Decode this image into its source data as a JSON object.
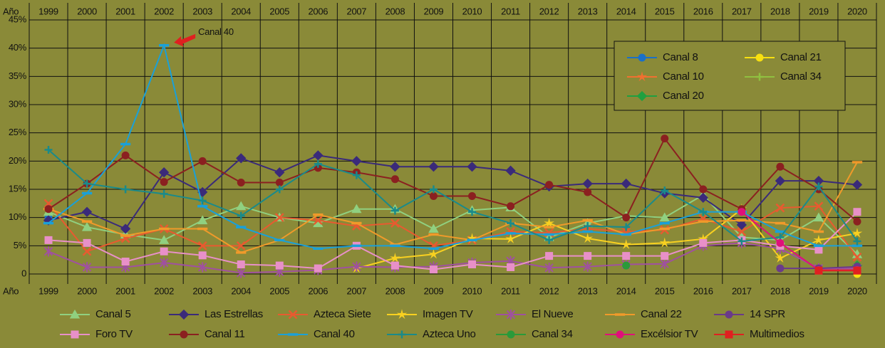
{
  "chart_data": {
    "type": "line",
    "x_label": "Año",
    "annotation": "Canal 40",
    "categories": [
      "1999",
      "2000",
      "2001",
      "2002",
      "2003",
      "2004",
      "2005",
      "2006",
      "2007",
      "2008",
      "2009",
      "2010",
      "2011",
      "2012",
      "2013",
      "2014",
      "2015",
      "2016",
      "2017",
      "2018",
      "2019",
      "2020"
    ],
    "ylim": [
      0,
      45
    ],
    "yticks": [
      0,
      {
        "value": 5,
        "label": "5%"
      },
      {
        "value": 10,
        "label": "10%"
      },
      {
        "value": 15,
        "label": "15%"
      },
      {
        "value": 20,
        "label": "20%"
      },
      {
        "value": 25,
        "label": "25%"
      },
      {
        "value": 30,
        "label": "30%"
      },
      {
        "value": 35,
        "label": "35%"
      },
      {
        "value": 40,
        "label": "40%"
      },
      {
        "value": 45,
        "label": "45%"
      }
    ],
    "grid": true,
    "series": [
      {
        "name": "Canal 8",
        "color": "#1a70c8",
        "marker": "circle",
        "legend": "inset",
        "values": [
          10,
          null,
          null,
          null,
          null,
          null,
          null,
          null,
          null,
          null,
          null,
          null,
          null,
          null,
          null,
          null,
          null,
          null,
          null,
          null,
          null,
          null
        ]
      },
      {
        "name": "Canal 21",
        "color": "#f8e010",
        "marker": "circle",
        "legend": "inset",
        "values": [
          null,
          null,
          null,
          null,
          null,
          null,
          null,
          null,
          null,
          null,
          null,
          null,
          null,
          null,
          null,
          null,
          null,
          null,
          null,
          null,
          null,
          0
        ]
      },
      {
        "name": "Canal 10",
        "color": "#f07030",
        "marker": "star",
        "legend": "inset",
        "values": [
          null,
          null,
          null,
          null,
          null,
          null,
          null,
          null,
          null,
          null,
          null,
          null,
          null,
          null,
          null,
          null,
          null,
          null,
          null,
          null,
          null,
          1
        ]
      },
      {
        "name": "Canal 34",
        "color": "#90c040",
        "marker": "plus",
        "legend": "inset",
        "values": [
          null,
          null,
          null,
          null,
          null,
          null,
          null,
          null,
          null,
          null,
          null,
          null,
          null,
          null,
          null,
          null,
          null,
          null,
          null,
          null,
          null,
          1.2
        ]
      },
      {
        "name": "Canal 20",
        "color": "#20a040",
        "marker": "diamond",
        "legend": "inset",
        "values": [
          null,
          null,
          null,
          null,
          null,
          null,
          null,
          null,
          null,
          null,
          null,
          null,
          null,
          null,
          null,
          null,
          null,
          null,
          null,
          null,
          null,
          1.5
        ]
      },
      {
        "name": "Canal 5",
        "color": "#90d080",
        "marker": "triangle",
        "legend": "bottom",
        "values": [
          11,
          8.3,
          7,
          6,
          9.5,
          12,
          10,
          9,
          11.5,
          11.5,
          8,
          11.3,
          11.8,
          6.5,
          9,
          10.3,
          10,
          14,
          6.5,
          6,
          10,
          3.5
        ]
      },
      {
        "name": "Las Estrellas",
        "color": "#3a2a7a",
        "marker": "diamond",
        "legend": "bottom",
        "values": [
          9.5,
          11,
          8,
          18,
          14.5,
          20.5,
          18,
          21,
          20,
          19,
          19,
          19,
          18.3,
          15.5,
          16,
          16,
          14.3,
          13.5,
          8.7,
          16.5,
          16.5,
          15.8
        ]
      },
      {
        "name": "Azteca Siete",
        "color": "#e85a30",
        "marker": "x",
        "legend": "bottom",
        "values": [
          12.5,
          4,
          6.3,
          8,
          5,
          5,
          10,
          9.5,
          8.5,
          9,
          5,
          6,
          7.5,
          7.3,
          8,
          7.5,
          7.8,
          9.8,
          7.5,
          11.7,
          12,
          3
        ]
      },
      {
        "name": "Imagen TV",
        "color": "#f8d020",
        "marker": "star",
        "legend": "bottom",
        "values": [
          null,
          null,
          null,
          null,
          null,
          null,
          null,
          null,
          1,
          2.8,
          3.5,
          6.3,
          6.2,
          9,
          6.3,
          5.2,
          5.5,
          6.2,
          11.5,
          2.8,
          6,
          7.2
        ]
      },
      {
        "name": "El Nueve",
        "color": "#a050a0",
        "marker": "asterisk",
        "legend": "bottom",
        "values": [
          4,
          1.2,
          1.2,
          2,
          1.2,
          0.2,
          0.4,
          0.7,
          1.3,
          1.2,
          1.3,
          2,
          2.3,
          1.1,
          1.3,
          1.7,
          1.8,
          5,
          5.5,
          4.5,
          1,
          1
        ]
      },
      {
        "name": "Canal 22",
        "color": "#f09a2a",
        "marker": "dash",
        "legend": "bottom",
        "values": [
          11.5,
          9.3,
          6.8,
          8,
          8,
          3.8,
          6,
          10.5,
          9,
          5.2,
          7,
          6,
          9,
          8.3,
          9.5,
          7,
          8,
          9.3,
          9.5,
          9,
          7.5,
          19.8
        ]
      },
      {
        "name": "14 SPR",
        "color": "#6a3a8a",
        "marker": "circle",
        "legend": "bottom",
        "values": [
          null,
          null,
          null,
          null,
          null,
          null,
          null,
          null,
          null,
          null,
          null,
          null,
          null,
          null,
          null,
          null,
          null,
          null,
          null,
          1,
          1,
          1.3
        ]
      },
      {
        "name": "Foro TV",
        "color": "#e890c8",
        "marker": "square",
        "legend": "bottom",
        "values": [
          6,
          5.5,
          2.2,
          4,
          3.3,
          1.7,
          1.5,
          1,
          5,
          1.5,
          0.8,
          1.7,
          1.2,
          3.2,
          3.2,
          3.2,
          3.2,
          5.5,
          6,
          5,
          4.3,
          11
        ]
      },
      {
        "name": "Canal 11",
        "color": "#8b2020",
        "marker": "circle",
        "legend": "bottom",
        "values": [
          11.5,
          16,
          21,
          16.3,
          20,
          16.2,
          16.2,
          18.8,
          18,
          16.8,
          13.8,
          13.8,
          12,
          15.8,
          14.5,
          10,
          24,
          15,
          11.5,
          19,
          15,
          9.3
        ]
      },
      {
        "name": "Canal 40",
        "color": "#1aa0d8",
        "marker": "dash",
        "legend": "bottom",
        "values": [
          9,
          14.3,
          23,
          40.5,
          12,
          8.3,
          6,
          4.5,
          5,
          5,
          4.5,
          6,
          7.2,
          7,
          7.5,
          7,
          9,
          11,
          11,
          7.5,
          5,
          5
        ]
      },
      {
        "name": "Azteca Uno",
        "color": "#1a8a8a",
        "marker": "plus",
        "legend": "bottom",
        "values": [
          22,
          16,
          15,
          14.2,
          13,
          10.3,
          15,
          19.5,
          17.5,
          11.2,
          15,
          11,
          9,
          6,
          8.5,
          8.3,
          14.8,
          11,
          5.8,
          6.5,
          15.5,
          5.8
        ]
      },
      {
        "name": "Canal 34",
        "color": "#2a9a3a",
        "marker": "circle",
        "legend": "bottom",
        "values": [
          null,
          null,
          null,
          null,
          null,
          null,
          null,
          null,
          null,
          null,
          null,
          null,
          null,
          null,
          null,
          1.5,
          null,
          null,
          null,
          null,
          null,
          null
        ]
      },
      {
        "name": "Excélsior TV",
        "color": "#e0107a",
        "marker": "circle",
        "legend": "bottom",
        "values": [
          null,
          null,
          null,
          null,
          null,
          null,
          null,
          null,
          null,
          null,
          null,
          null,
          null,
          null,
          null,
          null,
          null,
          null,
          11,
          5.5,
          0.7,
          0.7
        ]
      },
      {
        "name": "Multimedios",
        "color": "#e02020",
        "marker": "square",
        "legend": "bottom",
        "values": [
          null,
          null,
          null,
          null,
          null,
          null,
          null,
          null,
          null,
          null,
          null,
          null,
          null,
          null,
          null,
          null,
          null,
          null,
          null,
          null,
          0.6,
          0.6
        ]
      }
    ]
  }
}
